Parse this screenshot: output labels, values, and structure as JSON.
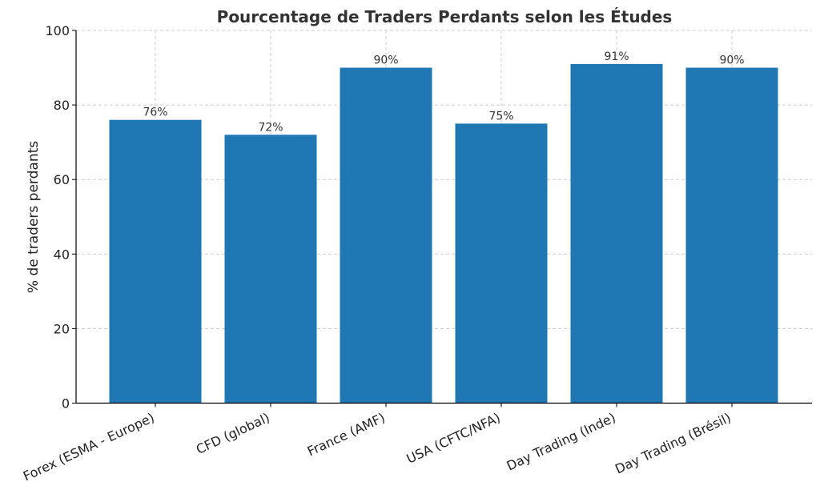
{
  "chart_data": {
    "type": "bar",
    "title": "Pourcentage de Traders Perdants selon les Études",
    "xlabel": "",
    "ylabel": "% de traders perdants",
    "categories": [
      "Forex (ESMA - Europe)",
      "CFD (global)",
      "France (AMF)",
      "USA (CFTC/NFA)",
      "Day Trading (Inde)",
      "Day Trading (Brésil)"
    ],
    "values": [
      76,
      72,
      90,
      75,
      91,
      90
    ],
    "data_labels": [
      "76%",
      "72%",
      "90%",
      "75%",
      "91%",
      "90%"
    ],
    "ylim": [
      0,
      100
    ],
    "yticks": [
      0,
      20,
      40,
      60,
      80,
      100
    ],
    "grid": true,
    "bar_color": "#1f77b4"
  }
}
